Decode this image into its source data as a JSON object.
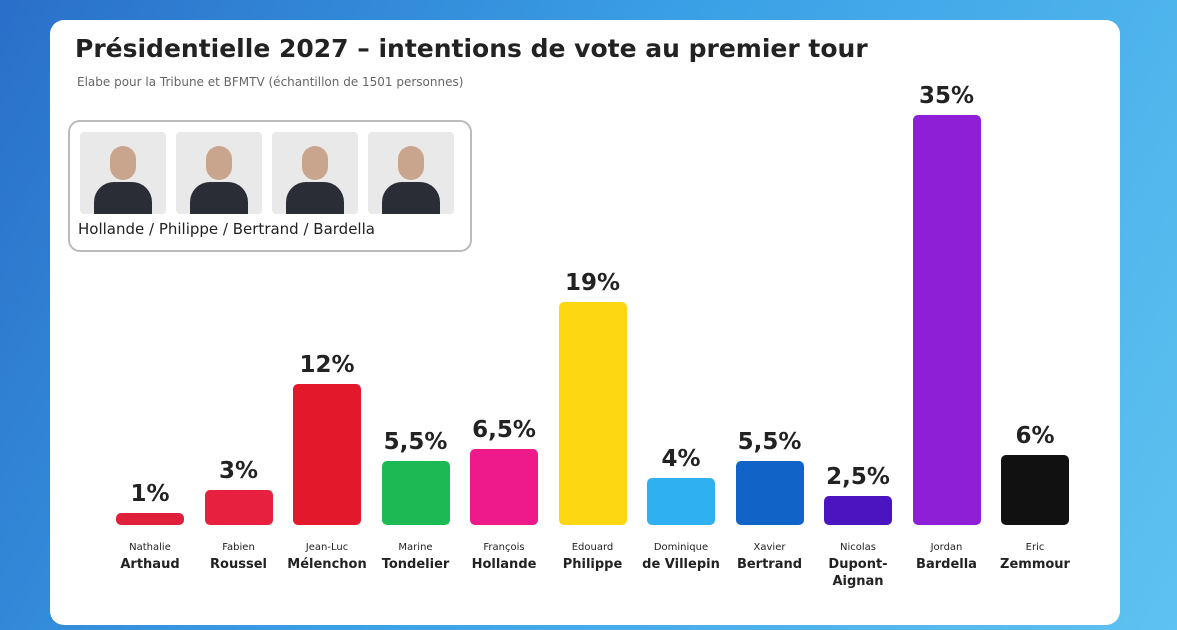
{
  "chart_data": {
    "type": "bar",
    "title": "Présidentielle 2027 – intentions de vote au premier tour",
    "subtitle": "Elabe pour la Tribune et  BFMTV (échantillon de 1501 personnes)",
    "legend_caption": "Hollande / Philippe / Bertrand / Bardella",
    "first_names": [
      "Nathalie",
      "Fabien",
      "Jean-Luc",
      "Marine",
      "François",
      "Edouard",
      "Dominique",
      "Xavier",
      "Nicolas",
      "Jordan",
      "Eric"
    ],
    "categories": [
      "Arthaud",
      "Roussel",
      "Mélenchon",
      "Tondelier",
      "Hollande",
      "Philippe",
      "de Villepin",
      "Bertrand",
      "Dupont-Aignan",
      "Bardella",
      "Zemmour"
    ],
    "values": [
      1,
      3,
      12,
      5.5,
      6.5,
      19,
      4,
      5.5,
      2.5,
      35,
      6
    ],
    "value_labels": [
      "1%",
      "3%",
      "12%",
      "5,5%",
      "6,5%",
      "19%",
      "4%",
      "5,5%",
      "2,5%",
      "35%",
      "6%"
    ],
    "colors": [
      "#e0203a",
      "#e8203f",
      "#e3182a",
      "#1db954",
      "#ee1a8c",
      "#fcd712",
      "#2fb0f0",
      "#1064c8",
      "#4a14c0",
      "#8e1fd6",
      "#111111"
    ]
  }
}
